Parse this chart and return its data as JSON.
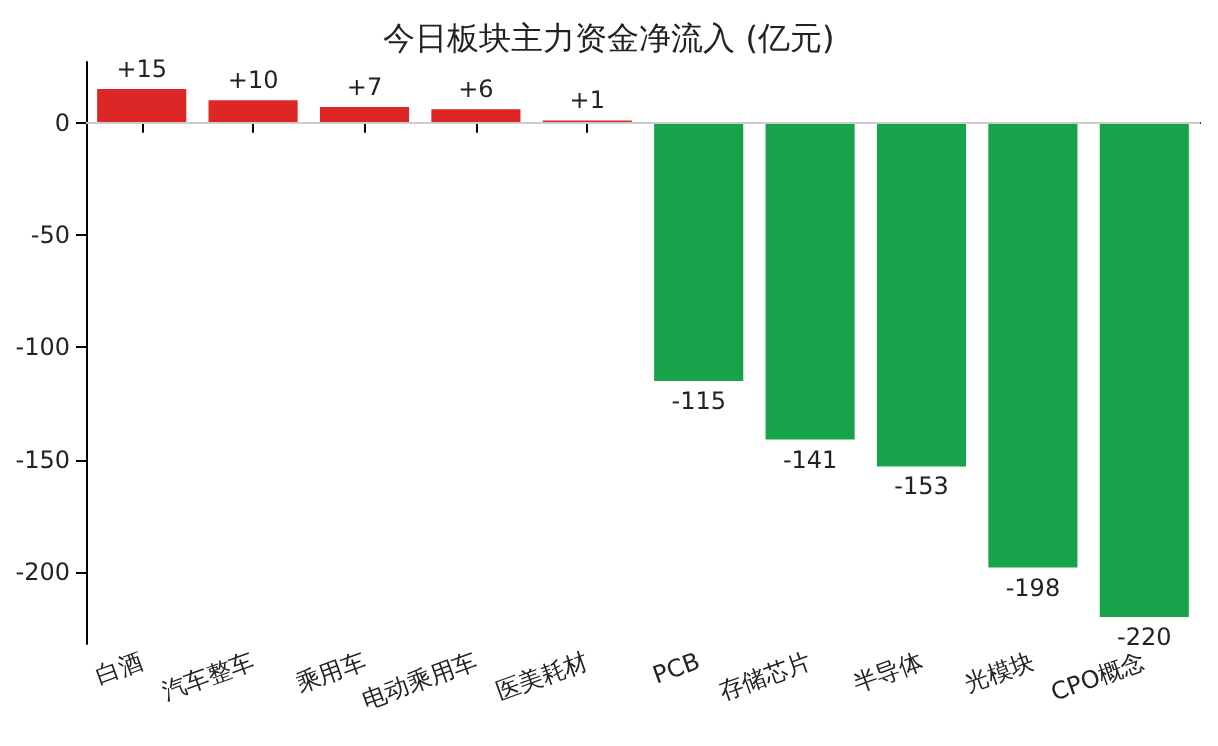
{
  "chart_data": {
    "type": "bar",
    "title": "今日板块主力资金净流入 (亿元)",
    "categories": [
      "白酒",
      "汽车整车",
      "乘用车",
      "电动乘用车",
      "医美耗材",
      "PCB",
      "存储芯片",
      "半导体",
      "光模块",
      "CPO概念"
    ],
    "values": [
      15,
      10,
      7,
      6,
      1,
      -115,
      -141,
      -153,
      -198,
      -220
    ],
    "colors": [
      "#dd2626",
      "#dd2626",
      "#dd2626",
      "#dd2626",
      "#dd2626",
      "#17a34a",
      "#17a34a",
      "#17a34a",
      "#17a34a",
      "#17a34a"
    ],
    "value_labels": [
      "+15",
      "+10",
      "+7",
      "+6",
      "+1",
      "-115",
      "-141",
      "-153",
      "-198",
      "-220"
    ],
    "ylim": [
      -232,
      27
    ],
    "yticks": [
      -200,
      -150,
      -100,
      -50,
      0
    ],
    "ref_lines": [
      {
        "axis": "y",
        "value": 0,
        "color": "#cccccc"
      }
    ]
  }
}
